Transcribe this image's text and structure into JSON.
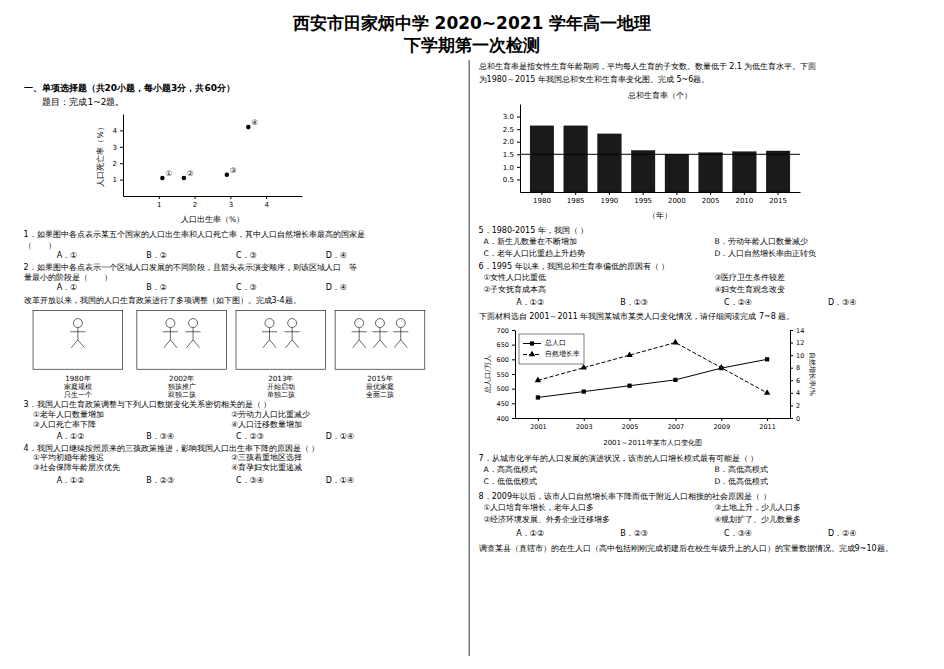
{
  "title": "西安市田家炳中学  2020~2021 学年高一地理",
  "subtitle": "下学期第一次检测",
  "left": {
    "section1_title": "一、单项选择题（共20小题，每小题3分，共60分）",
    "section1_sub": "题目：完成1~2题。",
    "q1": [
      "1．如果图中各点表示某五个国家的人口出生率和人口死亡率，其中人口自然增长率最高的国家是",
      "（　　）"
    ],
    "q1_opts": [
      "A．①",
      "B．②",
      "C．③",
      "D．④"
    ],
    "q2": [
      "2．如果图中各点表示一个区域人口发展的不同阶段，且箭头表示演变顺序，则该区域人口　等",
      "量最小的阶段是（　　）"
    ],
    "q2_opts": [
      "A．①",
      "B．②",
      "C．③",
      "D．④"
    ],
    "section2_intro": "改革开放以来，我国的人口生育政策进行了多项调整（如下图）。完成3-4题。",
    "policy_years": [
      "1980年",
      "2002年",
      "2013年",
      "2015年"
    ],
    "policy_labels": [
      "家庭规模",
      "独孩推广",
      "开始启动",
      "最优家庭"
    ],
    "policy_sublabels": [
      "只生一个",
      "双独二孩",
      "单独二孩",
      "全面二孩"
    ],
    "q3": "3．我国人口生育政策调整与下列人口数据变化关系密切相关的是（  ）",
    "q3_opts_a": [
      "①老年人口数量增加",
      "③人口死亡率下降"
    ],
    "q3_opts_b": [
      "②劳动力人口比重减少",
      "④人口迁移数量增加"
    ],
    "q3_answers": [
      "A．①②",
      "B．③④",
      "C．②③",
      "D．①④"
    ],
    "q4": "4．我国人口继续按照原来的三孩政策推进，影响我国人口出生率下降的原因是（  ）",
    "q4_opts_a": [
      "①平均初婚年龄推迟",
      "③社会保障年龄层次优先"
    ],
    "q4_opts_b": [
      "②三孩着重地区选择",
      "④育孕妇女比重递减"
    ],
    "q4_answers": [
      "A．①②",
      "B．②③",
      "C．③④",
      "D．①④"
    ]
  },
  "right": {
    "intro_text1": "总和生育率是指女性生育年龄期间，平均每人生育的子女数。数量低于  2.1 为低生育水平。下面",
    "intro_text2": "为1980～2015 年我国总和女生和生育率变化图。完成 5~6题。",
    "q5": "5．1980-2015 年，我国（  ）",
    "q5_opts": [
      "A．新生儿数量在不断增加",
      "B．劳动年龄人口数量减少",
      "C．老年人口比重趋上升趋势",
      "D．人口自然增长率由正转负"
    ],
    "q6": "6．1995 年以来，我国总和生育率偏低的原因有（  ）",
    "q6_opts_a": [
      "①女性人口比重低",
      "②子女抚育成本高"
    ],
    "q6_opts_b": [
      "③医疗卫生条件较差",
      "④妇女生育观念改变"
    ],
    "q6_answers": [
      "A．①②",
      "B．①③",
      "C．②④",
      "D．③④"
    ],
    "section3_intro": "下面材料选自 2001～2011 年我国某城市某类人口变化情况，请仔细阅读完成 7~8 题。",
    "q7": "7．从城市化半年的人口发展的演进状况，该市的人口增长模式最有可能是（  ）",
    "q7_opts": [
      "A．高高低模式",
      "B．高低高模式",
      "C．低低低模式",
      "D．低高低模式"
    ],
    "q8": "8．2009年以后，该市人口自然增长率下降而低于附近人口相接的社会原因是（  ）",
    "q8_opts_a": [
      "①人口培育年增长，老年人口多",
      "②经济环境发展、外务企业迁移增多"
    ],
    "q8_opts_b": [
      "③土地上升，少儿人口多",
      "④规划扩了、少儿数量多"
    ],
    "q8_answers": [
      "A．①②",
      "B．②③",
      "C．③④",
      "D．②④"
    ],
    "section4_intro": "调查某县（直辖市）的在生人口（高中包括刚刚完成初建后在校生年级升上的人口）的宝量数据情况。完成9~10题。"
  },
  "chart_data": [
    {
      "type": "scatter",
      "x": [
        1.1,
        1.7,
        2.9,
        3.5
      ],
      "values": [
        1.1,
        1.1,
        1.3,
        4.2
      ],
      "annotations": [
        "①",
        "②",
        "③",
        "④"
      ],
      "xlabel": "人口出生率（%）",
      "ylabel": "人口死亡率（%）",
      "xlim": [
        0,
        5
      ],
      "ylim": [
        0,
        5
      ],
      "xticks": [
        1,
        2,
        3,
        4
      ],
      "yticks": [
        1,
        2,
        3,
        4
      ],
      "color": "#000000",
      "marker": "dot"
    },
    {
      "type": "bar",
      "title": "总和生育率（个）",
      "categories": [
        "1980",
        "1985",
        "1990",
        "1995",
        "2000",
        "2005",
        "2010",
        "2015"
      ],
      "values": [
        2.63,
        2.63,
        2.31,
        1.65,
        1.5,
        1.56,
        1.6,
        1.63
      ],
      "color": "#1a1a1a",
      "reference_line": 1.5,
      "xlabel": "（年）",
      "ylim": [
        0,
        3.5
      ],
      "yticks": [
        0.5,
        {
          "value": 1,
          "label": "1.0"
        },
        1.5,
        {
          "value": 2,
          "label": "2.0"
        },
        2.5,
        {
          "value": 3,
          "label": "3.0"
        }
      ]
    },
    {
      "type": "line",
      "xlabel": "2001～2011年某市人口变化图",
      "ylabel": "总人口/万人",
      "y2label": "自然增长率/%",
      "x": [
        2001,
        2003,
        2005,
        2007,
        2009,
        2011
      ],
      "xlim": [
        2000,
        2012
      ],
      "xticks": [
        2001,
        2003,
        2005,
        2007,
        2009,
        2011
      ],
      "ylim": [
        400,
        700
      ],
      "yticks": [
        400,
        450,
        500,
        550,
        600,
        650,
        700
      ],
      "y2lim": [
        0,
        14
      ],
      "y2ticks": [
        0,
        2,
        4,
        6,
        8,
        10,
        12,
        14
      ],
      "legend": "upper left",
      "series": [
        {
          "name": "总人口",
          "color": "#000000",
          "marker": "square",
          "line_style": "solid",
          "values": [
            470,
            490,
            510,
            530,
            570,
            600
          ]
        },
        {
          "name": "自然增长率",
          "color": "#000000",
          "marker": "triangle",
          "line_style": "dashed",
          "axis": "y2",
          "values": [
            6,
            8,
            10,
            12,
            8,
            4
          ]
        }
      ]
    }
  ]
}
